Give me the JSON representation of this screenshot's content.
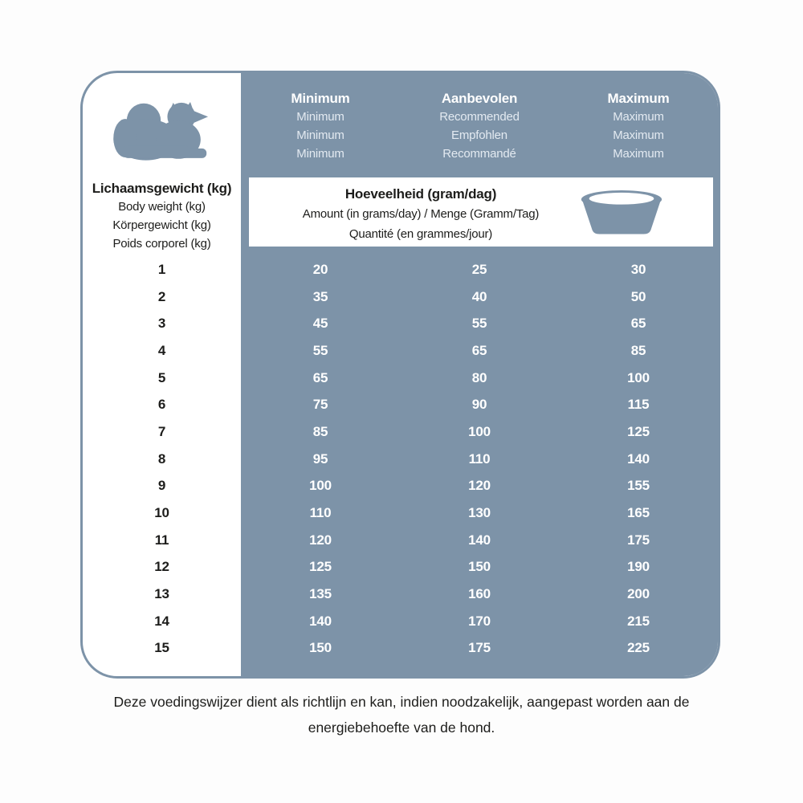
{
  "colors": {
    "panel": "#7d93a8",
    "subtext_light": "#e3eaf1",
    "text_dark": "#1d1d1b"
  },
  "icons": {
    "dog": "lying-dog-silhouette",
    "bowl": "dog-food-bowl"
  },
  "weight_header": {
    "title": "Lichaamsgewicht (kg)",
    "subtitles": [
      "Body weight (kg)",
      "Körpergewicht (kg)",
      "Poids corporel (kg)"
    ]
  },
  "columns": [
    {
      "title": "Minimum",
      "subtitles": [
        "Minimum",
        "Minimum",
        "Minimum"
      ]
    },
    {
      "title": "Aanbevolen",
      "subtitles": [
        "Recommended",
        "Empfohlen",
        "Recommandé"
      ]
    },
    {
      "title": "Maximum",
      "subtitles": [
        "Maximum",
        "Maximum",
        "Maximum"
      ]
    }
  ],
  "amount_band": {
    "title": "Hoeveelheid (gram/dag)",
    "line2": "Amount (in grams/day) / Menge (Gramm/Tag)",
    "line3": "Quantité (en grammes/jour)"
  },
  "rows": [
    {
      "weight": "1",
      "min": "20",
      "rec": "25",
      "max": "30"
    },
    {
      "weight": "2",
      "min": "35",
      "rec": "40",
      "max": "50"
    },
    {
      "weight": "3",
      "min": "45",
      "rec": "55",
      "max": "65"
    },
    {
      "weight": "4",
      "min": "55",
      "rec": "65",
      "max": "85"
    },
    {
      "weight": "5",
      "min": "65",
      "rec": "80",
      "max": "100"
    },
    {
      "weight": "6",
      "min": "75",
      "rec": "90",
      "max": "115"
    },
    {
      "weight": "7",
      "min": "85",
      "rec": "100",
      "max": "125"
    },
    {
      "weight": "8",
      "min": "95",
      "rec": "110",
      "max": "140"
    },
    {
      "weight": "9",
      "min": "100",
      "rec": "120",
      "max": "155"
    },
    {
      "weight": "10",
      "min": "110",
      "rec": "130",
      "max": "165"
    },
    {
      "weight": "11",
      "min": "120",
      "rec": "140",
      "max": "175"
    },
    {
      "weight": "12",
      "min": "125",
      "rec": "150",
      "max": "190"
    },
    {
      "weight": "13",
      "min": "135",
      "rec": "160",
      "max": "200"
    },
    {
      "weight": "14",
      "min": "140",
      "rec": "170",
      "max": "215"
    },
    {
      "weight": "15",
      "min": "150",
      "rec": "175",
      "max": "225"
    }
  ],
  "footnote": {
    "text": "Deze voedingswijzer dient als richtlijn en kan, indien noodzakelijk, aangepast worden aan de energiebehoefte van de hond."
  }
}
